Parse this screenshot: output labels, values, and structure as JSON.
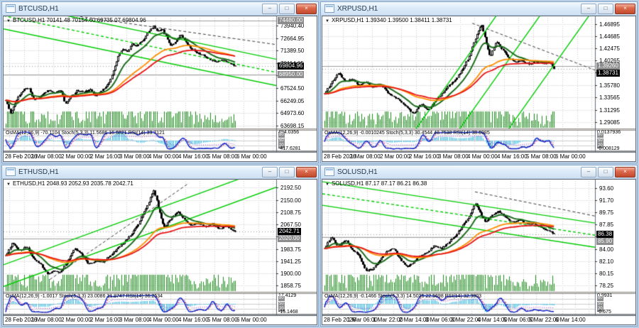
{
  "window": {
    "dropdown_arrow": "▼",
    "icons": {
      "minimize": "–",
      "restore": "□",
      "close": "×"
    }
  },
  "colors": {
    "background": "#b9cfe6",
    "grid": "#c9c9c9",
    "grid_h": "#ececec",
    "candle": "#000000",
    "bull_fill": "#ffffff",
    "volume": "#1d8a1d",
    "ma_fast": "#1c6e1c",
    "ma_mid": "#ff8c00",
    "ma_slow": "#e81414",
    "trend": "#00cc00",
    "trend_dark": "#3c3c3c",
    "hist": "#2fb9ea",
    "stoch": "#0022cc",
    "signal": "#d4002a",
    "rsi": "#9b30d0",
    "level_line": "#a0a0a0",
    "current_box": "#000000",
    "level_box": "#8c8c8c"
  },
  "panels": [
    {
      "id": "btcusd",
      "title": "BTCUSD,H1",
      "info_line": "BTCUSD,H1 70141.48 70154.60 69735.07 69804.96",
      "indicator_label": "OsMA(12,26,9) -70.1104  Stoch(5,3,3) 11.5686 16.6821  RSI(14) 33.7121",
      "time_labels": [
        "28 Feb 2026",
        "1 Mar 08:00",
        "2 Mar 00:00",
        "2 Mar 16:00",
        "3 Mar 08:00",
        "4 Mar 00:00",
        "4 Mar 16:00",
        "5 Mar 08:00",
        "6 Mar 00:00"
      ],
      "axis_ticks": [
        "73940.40",
        "72664.95",
        "71389.50",
        "70114.05",
        "68838.60",
        "67524.50",
        "66249.05",
        "64973.60",
        "63698.15"
      ],
      "range": [
        63400,
        74750
      ],
      "price_boxes": [
        {
          "label": "74480.00",
          "price": 74480.0,
          "kind": "level"
        },
        {
          "label": "69804.96",
          "price": 69804.96,
          "kind": "current"
        },
        {
          "label": "68950.00",
          "price": 68950.0,
          "kind": "level"
        }
      ],
      "levels": [
        74480.0,
        68950.0
      ],
      "indicator_axis": {
        "top": "494.0356",
        "bottom": "-417.6281",
        "levels": [
          "80",
          "50",
          "20"
        ]
      },
      "chart_data": {
        "type": "candlestick",
        "symbol": "BTCUSD",
        "timeframe": "H1",
        "last_ohlc": {
          "open": 70141.48,
          "high": 70154.6,
          "low": 69735.07,
          "close": 69804.96
        },
        "indicators": {
          "osma": -70.1104,
          "stoch_k": 11.5686,
          "stoch_d": 16.6821,
          "rsi": 33.7121
        },
        "candles": 150,
        "seed": 11,
        "price_path": [
          [
            0,
            66300
          ],
          [
            0.02,
            64950
          ],
          [
            0.05,
            66500
          ],
          [
            0.08,
            67450
          ],
          [
            0.1,
            67550
          ],
          [
            0.12,
            66350
          ],
          [
            0.15,
            66650
          ],
          [
            0.18,
            67300
          ],
          [
            0.21,
            67050
          ],
          [
            0.24,
            67350
          ],
          [
            0.26,
            65900
          ],
          [
            0.28,
            66600
          ],
          [
            0.31,
            67300
          ],
          [
            0.34,
            67150
          ],
          [
            0.37,
            67350
          ],
          [
            0.39,
            66750
          ],
          [
            0.42,
            67300
          ],
          [
            0.45,
            68100
          ],
          [
            0.47,
            69300
          ],
          [
            0.49,
            70800
          ],
          [
            0.51,
            71600
          ],
          [
            0.53,
            71250
          ],
          [
            0.55,
            72150
          ],
          [
            0.57,
            71850
          ],
          [
            0.6,
            72500
          ],
          [
            0.62,
            73300
          ],
          [
            0.645,
            73900
          ],
          [
            0.66,
            73350
          ],
          [
            0.68,
            73650
          ],
          [
            0.7,
            72750
          ],
          [
            0.72,
            71850
          ],
          [
            0.74,
            72350
          ],
          [
            0.76,
            73050
          ],
          [
            0.78,
            72500
          ],
          [
            0.8,
            71800
          ],
          [
            0.83,
            71200
          ],
          [
            0.86,
            70900
          ],
          [
            0.89,
            70500
          ],
          [
            0.92,
            70250
          ],
          [
            0.95,
            70450
          ],
          [
            0.98,
            70050
          ],
          [
            1,
            69804.96
          ]
        ],
        "trend_lines": [
          {
            "x1": 0,
            "p1": 76300,
            "x2": 1,
            "p2": 70500,
            "color": "trend",
            "dash": false
          },
          {
            "x1": 0,
            "p1": 74950,
            "x2": 1,
            "p2": 69150,
            "color": "trend",
            "dash": true
          },
          {
            "x1": 0,
            "p1": 73600,
            "x2": 1,
            "p2": 67800,
            "color": "trend",
            "dash": false
          },
          {
            "x1": 0.1,
            "p1": 75600,
            "x2": 1.0,
            "p2": 72000,
            "color": "dark",
            "dash": true
          }
        ]
      }
    },
    {
      "id": "xrpusd",
      "title": "XRPUSD,H1",
      "info_line": "XRPUSD,H1 1.39340 1.39500 1.38411 1.38731",
      "indicator_label": "OsMA(12,26,9) -0.0010245  Stoch(5,3,3) 30.4544 43.7538  RSI(14) 38.6985",
      "time_labels": [
        "28 Feb 2026",
        "1 Mar 08:00",
        "2 Mar 00:00",
        "2 Mar 16:00",
        "3 Mar 08:00",
        "4 Mar 00:00",
        "4 Mar 16:00",
        "5 Mar 08:00",
        "6 Mar 00:00"
      ],
      "axis_ticks": [
        "1.46895",
        "1.44685",
        "1.42475",
        "1.40265",
        "1.38055",
        "1.35780",
        "1.33565",
        "1.31295",
        "1.29085"
      ],
      "range": [
        1.279,
        1.48
      ],
      "price_boxes": [
        {
          "label": "1.39260",
          "price": 1.3926,
          "kind": "level"
        },
        {
          "label": "1.38731",
          "price": 1.38731,
          "kind": "current"
        }
      ],
      "levels": [
        1.3926
      ],
      "indicator_axis": {
        "top": "0.0137936",
        "bottom": "-0.008129",
        "levels": [
          "80",
          "50",
          "20"
        ]
      },
      "chart_data": {
        "type": "candlestick",
        "symbol": "XRPUSD",
        "timeframe": "H1",
        "last_ohlc": {
          "open": 1.3934,
          "high": 1.395,
          "low": 1.38411,
          "close": 1.38731
        },
        "indicators": {
          "osma": -0.0010245,
          "stoch_k": 30.4544,
          "stoch_d": 43.7538,
          "rsi": 38.6985
        },
        "candles": 150,
        "seed": 23,
        "price_path": [
          [
            0,
            1.343
          ],
          [
            0.03,
            1.362
          ],
          [
            0.06,
            1.379
          ],
          [
            0.09,
            1.364
          ],
          [
            0.12,
            1.37
          ],
          [
            0.15,
            1.356
          ],
          [
            0.18,
            1.364
          ],
          [
            0.21,
            1.354
          ],
          [
            0.24,
            1.36
          ],
          [
            0.27,
            1.346
          ],
          [
            0.3,
            1.336
          ],
          [
            0.33,
            1.329
          ],
          [
            0.36,
            1.316
          ],
          [
            0.39,
            1.306
          ],
          [
            0.42,
            1.324
          ],
          [
            0.45,
            1.312
          ],
          [
            0.48,
            1.328
          ],
          [
            0.51,
            1.342
          ],
          [
            0.54,
            1.356
          ],
          [
            0.57,
            1.368
          ],
          [
            0.6,
            1.385
          ],
          [
            0.63,
            1.41
          ],
          [
            0.66,
            1.445
          ],
          [
            0.685,
            1.468
          ],
          [
            0.7,
            1.44
          ],
          [
            0.72,
            1.408
          ],
          [
            0.75,
            1.438
          ],
          [
            0.77,
            1.424
          ],
          [
            0.8,
            1.408
          ],
          [
            0.83,
            1.399
          ],
          [
            0.86,
            1.403
          ],
          [
            0.89,
            1.396
          ],
          [
            0.92,
            1.401
          ],
          [
            0.95,
            1.397
          ],
          [
            0.98,
            1.399
          ],
          [
            1,
            1.38731
          ]
        ],
        "trend_lines": [
          {
            "x1": 0.34,
            "p1": 1.276,
            "x2": 0.64,
            "p2": 1.485,
            "color": "trend",
            "dash": false
          },
          {
            "x1": 0.5,
            "p1": 1.276,
            "x2": 0.8,
            "p2": 1.485,
            "color": "trend",
            "dash": false
          },
          {
            "x1": 0.68,
            "p1": 1.276,
            "x2": 0.98,
            "p2": 1.485,
            "color": "trend",
            "dash": false
          },
          {
            "x1": 0.55,
            "p1": 1.47,
            "x2": 1.0,
            "p2": 1.385,
            "color": "dark",
            "dash": true
          }
        ]
      }
    },
    {
      "id": "ethusd",
      "title": "ETHUSD,H1",
      "info_line": "ETHUSD,H1 2048.93 2052.93 2035.78 2042.71",
      "indicator_label": "OsMA(12,26,9) -1.0017  Stoch(5,3,3) 23.0086 31.8747  RSI(14) 36.2534",
      "time_labels": [
        "28 Feb 2026",
        "1 Mar 08:00",
        "2 Mar 00:00",
        "2 Mar 16:00",
        "3 Mar 08:00",
        "4 Mar 00:00",
        "4 Mar 16:00",
        "5 Mar 08:00",
        "6 Mar 00:00"
      ],
      "axis_ticks": [
        "2192.50",
        "2150.00",
        "2108.75",
        "2067.50",
        "2026.25",
        "1983.75",
        "1941.25",
        "1900.00",
        "1858.75"
      ],
      "range": [
        1838,
        2215
      ],
      "price_boxes": [
        {
          "label": "2042.71",
          "price": 2042.71,
          "kind": "current"
        },
        {
          "label": "2020.00",
          "price": 2020.0,
          "kind": "level"
        }
      ],
      "levels": [
        2020.0
      ],
      "indicator_axis": {
        "top": "17.4129",
        "bottom": "-15.1468",
        "levels": [
          "80",
          "50",
          "20"
        ]
      },
      "chart_data": {
        "type": "candlestick",
        "symbol": "ETHUSD",
        "timeframe": "H1",
        "last_ohlc": {
          "open": 2048.93,
          "high": 2052.93,
          "low": 2035.78,
          "close": 2042.71
        },
        "indicators": {
          "osma": -1.0017,
          "stoch_k": 23.0086,
          "stoch_d": 31.8747,
          "rsi": 36.2534
        },
        "candles": 150,
        "seed": 37,
        "price_path": [
          [
            0,
            1962
          ],
          [
            0.03,
            2006
          ],
          [
            0.06,
            1976
          ],
          [
            0.09,
            1992
          ],
          [
            0.12,
            1952
          ],
          [
            0.15,
            1934
          ],
          [
            0.18,
            1898
          ],
          [
            0.21,
            1912
          ],
          [
            0.24,
            1904
          ],
          [
            0.27,
            1946
          ],
          [
            0.3,
            1984
          ],
          [
            0.33,
            1968
          ],
          [
            0.36,
            1930
          ],
          [
            0.39,
            1944
          ],
          [
            0.42,
            1938
          ],
          [
            0.45,
            1958
          ],
          [
            0.49,
            1988
          ],
          [
            0.53,
            2018
          ],
          [
            0.57,
            2058
          ],
          [
            0.61,
            2118
          ],
          [
            0.645,
            2186
          ],
          [
            0.67,
            2108
          ],
          [
            0.69,
            2058
          ],
          [
            0.72,
            2088
          ],
          [
            0.75,
            2112
          ],
          [
            0.78,
            2082
          ],
          [
            0.81,
            2064
          ],
          [
            0.84,
            2072
          ],
          [
            0.87,
            2058
          ],
          [
            0.9,
            2070
          ],
          [
            0.93,
            2052
          ],
          [
            0.96,
            2062
          ],
          [
            1,
            2042.71
          ]
        ],
        "trend_lines": [
          {
            "x1": 0,
            "p1": 1930,
            "x2": 1,
            "p2": 2268,
            "color": "trend",
            "dash": false
          },
          {
            "x1": 0,
            "p1": 1856,
            "x2": 1,
            "p2": 2194,
            "color": "trend",
            "dash": false
          },
          {
            "x1": 0.17,
            "p1": 1880,
            "x2": 0.68,
            "p2": 2208,
            "color": "dark",
            "dash": true
          }
        ]
      }
    },
    {
      "id": "solusd",
      "title": "SOLUSD,H1",
      "info_line": "SOLUSD,H1 87.17 87.17 86.21 86.38",
      "indicator_label": "OsMA(12,26,9) -0.1466  Stoch(5,3,3) 14.5035 22.5698  RSI(14) 32.3803",
      "time_labels": [
        "28 Feb 2026",
        "1 Mar 06:00",
        "1 Mar 22:00",
        "2 Mar 14:00",
        "3 Mar 06:00",
        "3 Mar 22:00",
        "4 Mar 14:00",
        "5 Mar 06:00",
        "5 Mar 22:00",
        "6 Mar 14:00"
      ],
      "axis_ticks": [
        "93.60",
        "91.70",
        "89.75",
        "87.85",
        "85.95",
        "84.00",
        "82.10",
        "80.15",
        "78.25"
      ],
      "range": [
        77.3,
        94.7
      ],
      "price_boxes": [
        {
          "label": "86.38",
          "price": 86.38,
          "kind": "current"
        },
        {
          "label": "85.90",
          "price": 85.9,
          "kind": "level"
        }
      ],
      "levels": [
        85.9
      ],
      "indicator_axis": {
        "top": "0.9931",
        "bottom": "-0.675",
        "levels": [
          "80",
          "50",
          "20"
        ]
      },
      "chart_data": {
        "type": "candlestick",
        "symbol": "SOLUSD",
        "timeframe": "H1",
        "last_ohlc": {
          "open": 87.17,
          "high": 87.17,
          "low": 86.21,
          "close": 86.38
        },
        "indicators": {
          "osma": -0.1466,
          "stoch_k": 14.5035,
          "stoch_d": 22.5698,
          "rsi": 32.3803
        },
        "candles": 150,
        "seed": 51,
        "price_path": [
          [
            0,
            84.2
          ],
          [
            0.03,
            85.9
          ],
          [
            0.06,
            84.4
          ],
          [
            0.09,
            85.5
          ],
          [
            0.12,
            84.0
          ],
          [
            0.15,
            83.0
          ],
          [
            0.18,
            80.6
          ],
          [
            0.21,
            80.9
          ],
          [
            0.24,
            82.2
          ],
          [
            0.27,
            83.6
          ],
          [
            0.3,
            84.1
          ],
          [
            0.33,
            82.4
          ],
          [
            0.36,
            81.2
          ],
          [
            0.39,
            82.1
          ],
          [
            0.42,
            83.1
          ],
          [
            0.45,
            83.6
          ],
          [
            0.48,
            84.6
          ],
          [
            0.51,
            84.1
          ],
          [
            0.54,
            85.1
          ],
          [
            0.57,
            86.1
          ],
          [
            0.6,
            87.6
          ],
          [
            0.63,
            89.1
          ],
          [
            0.655,
            91.3
          ],
          [
            0.68,
            89.6
          ],
          [
            0.7,
            88.1
          ],
          [
            0.73,
            89.4
          ],
          [
            0.76,
            89.9
          ],
          [
            0.79,
            88.9
          ],
          [
            0.82,
            88.3
          ],
          [
            0.85,
            88.6
          ],
          [
            0.88,
            87.9
          ],
          [
            0.91,
            88.1
          ],
          [
            0.94,
            87.5
          ],
          [
            0.97,
            87.1
          ],
          [
            1,
            86.38
          ]
        ],
        "trend_lines": [
          {
            "x1": 0,
            "p1": 94.6,
            "x2": 1,
            "p2": 88.1,
            "color": "trend",
            "dash": false
          },
          {
            "x1": 0,
            "p1": 92.7,
            "x2": 1,
            "p2": 86.2,
            "color": "trend",
            "dash": true
          },
          {
            "x1": 0,
            "p1": 90.9,
            "x2": 1,
            "p2": 84.3,
            "color": "trend",
            "dash": false
          },
          {
            "x1": 0.56,
            "p1": 93.0,
            "x2": 1.0,
            "p2": 89.2,
            "color": "dark",
            "dash": true
          }
        ]
      }
    }
  ]
}
